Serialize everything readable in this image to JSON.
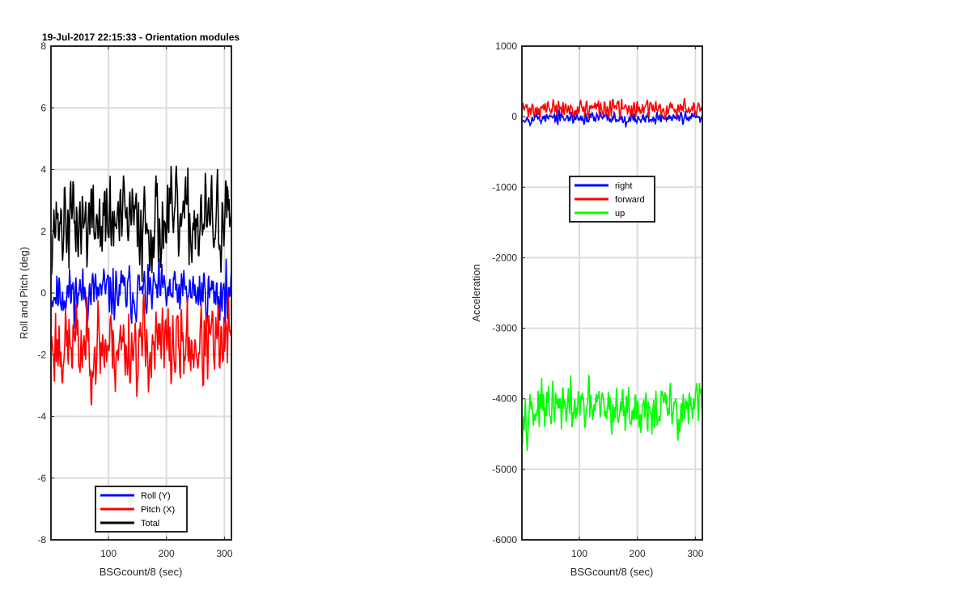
{
  "chart_data": [
    {
      "type": "line",
      "title": "19-Jul-2017 22:15:33 - Orientation modules",
      "xlabel": "BSGcount/8 (sec)",
      "ylabel": "Roll and Pitch (deg)",
      "xlim": [
        1,
        312
      ],
      "ylim": [
        -8,
        8
      ],
      "xticks": [
        100,
        200,
        300
      ],
      "yticks": [
        -8,
        -6,
        -4,
        -2,
        0,
        2,
        4,
        6,
        8
      ],
      "grid": true,
      "legend_position": "bottom-center",
      "series": [
        {
          "name": "Roll (Y)",
          "color": "#0000ff",
          "mean": 0.0,
          "amplitude": 0.9,
          "seed": 11
        },
        {
          "name": "Pitch (X)",
          "color": "#ff0000",
          "mean": -1.7,
          "amplitude": 1.5,
          "seed": 23
        },
        {
          "name": "Total",
          "color": "#000000",
          "mean": 2.3,
          "amplitude": 1.6,
          "seed": 37
        }
      ]
    },
    {
      "type": "line",
      "title": "",
      "xlabel": "BSGcount/8 (sec)",
      "ylabel": "Acceleration",
      "xlim": [
        1,
        312
      ],
      "ylim": [
        -6000,
        1000
      ],
      "xticks": [
        100,
        200,
        300
      ],
      "yticks": [
        -6000,
        -5000,
        -4000,
        -3000,
        -2000,
        -1000,
        0,
        1000
      ],
      "grid": true,
      "legend_position": "upper-center",
      "series": [
        {
          "name": "right",
          "color": "#0000ff",
          "mean": -20,
          "amplitude": 90,
          "seed": 53
        },
        {
          "name": "forward",
          "color": "#ff0000",
          "mean": 110,
          "amplitude": 130,
          "seed": 71
        },
        {
          "name": "up",
          "color": "#00ff00",
          "mean": -4150,
          "amplitude": 380,
          "seed": 97
        }
      ]
    }
  ]
}
